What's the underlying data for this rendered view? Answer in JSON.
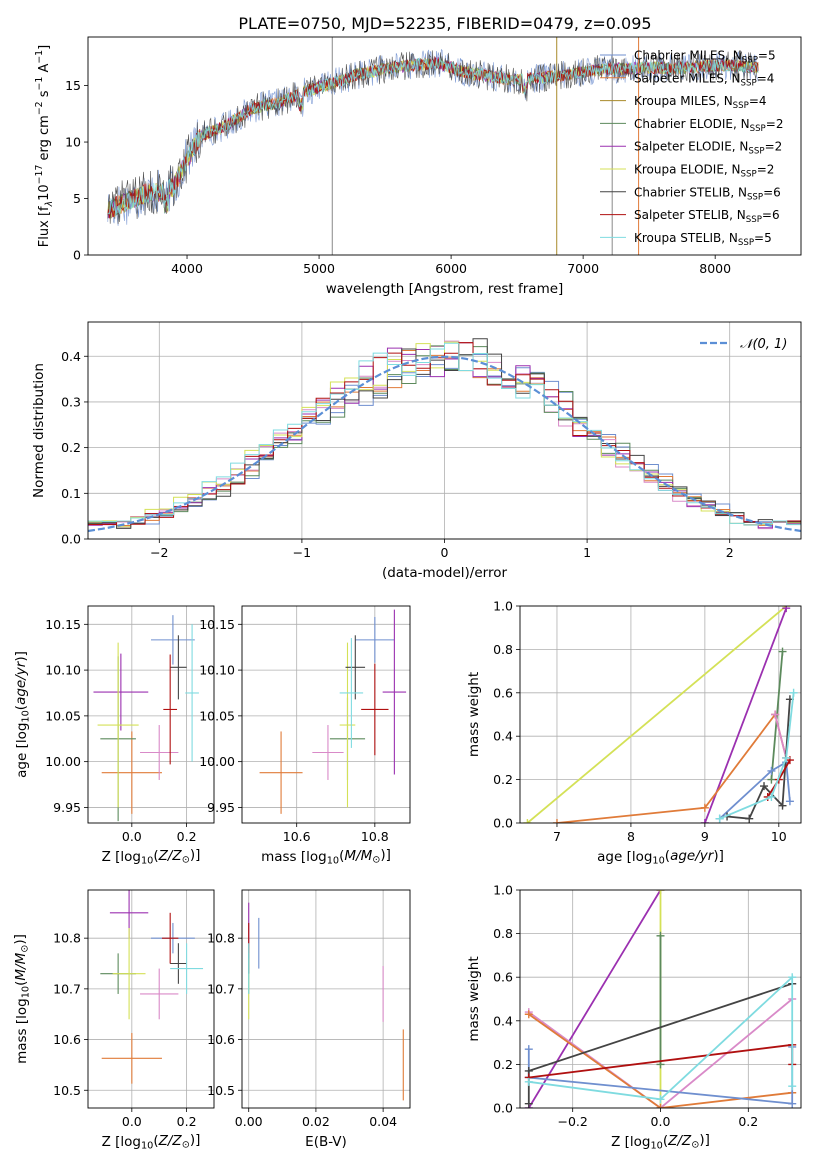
{
  "figure_title": "PLATE=0750, MJD=52235, FIBERID=0479, z=0.095",
  "chart_data": [
    {
      "id": "spectrum",
      "type": "line",
      "xlabel": "wavelength [Angstrom, rest frame]",
      "ylabel": "Flux [f$_\\lambda$10$^{-17}$ erg cm$^{-2}$ s$^{-1}$ A$^{-1}$]",
      "ylabel_parts": [
        "Flux [f",
        "λ",
        "10",
        "−17",
        " erg cm",
        "−2",
        " s",
        "−1",
        " A",
        "−1",
        "]"
      ],
      "xlim": [
        3250,
        8650
      ],
      "ylim": [
        0,
        19.3
      ],
      "xticks": [
        4000,
        5000,
        6000,
        7000,
        8000
      ],
      "yticks": [
        0,
        5,
        10,
        15
      ],
      "grid": false,
      "legend_position": "top-right",
      "continuum_anchors": {
        "x": [
          3400,
          3500,
          3600,
          3700,
          3800,
          3900,
          4000,
          4100,
          4300,
          4500,
          4700,
          4900,
          5100,
          5300,
          5500,
          5700,
          5900,
          6100,
          6300,
          6500,
          6700,
          6900,
          7100,
          7300,
          7500,
          7700,
          7900,
          8100,
          8300
        ],
        "y": [
          4.0,
          4.5,
          5.0,
          5.5,
          5.5,
          6.0,
          8.5,
          10.5,
          11.5,
          13.0,
          13.5,
          14.5,
          15.2,
          16.0,
          16.5,
          16.8,
          17.0,
          16.2,
          15.8,
          15.5,
          15.7,
          16.0,
          16.4,
          16.5,
          16.6,
          16.5,
          16.7,
          16.8,
          16.6
        ]
      },
      "series": [
        {
          "name": "Chabrier MILES, N$_{SSP}$=5",
          "label": "Chabrier MILES",
          "nssp": "5",
          "color": "#6f8fcf"
        },
        {
          "name": "Salpeter MILES, N$_{SSP}$=4",
          "label": "Salpeter MILES",
          "nssp": "4",
          "color": "#e07b39"
        },
        {
          "name": "Kroupa MILES, N$_{SSP}$=4",
          "label": "Kroupa MILES",
          "nssp": "4",
          "color": "#a88a2a"
        },
        {
          "name": "Chabrier ELODIE, N$_{SSP}$=2",
          "label": "Chabrier ELODIE",
          "nssp": "2",
          "color": "#5c8a5c"
        },
        {
          "name": "Salpeter ELODIE, N$_{SSP}$=2",
          "label": "Salpeter ELODIE",
          "nssp": "2",
          "color": "#9b30b0"
        },
        {
          "name": "Kroupa ELODIE, N$_{SSP}$=2",
          "label": "Kroupa ELODIE",
          "nssp": "2",
          "color": "#d4e157"
        },
        {
          "name": "Chabrier STELIB, N$_{SSP}$=6",
          "label": "Chabrier STELIB",
          "nssp": "6",
          "color": "#444444"
        },
        {
          "name": "Salpeter STELIB, N$_{SSP}$=6",
          "label": "Salpeter STELIB",
          "nssp": "6",
          "color": "#b01010"
        },
        {
          "name": "Kroupa STELIB, N$_{SSP}$=5",
          "label": "Kroupa STELIB",
          "nssp": "5",
          "color": "#7fdbe0"
        }
      ],
      "spikes": [
        {
          "x": 5100,
          "y": 19.3,
          "color": "#888888"
        },
        {
          "x": 6800,
          "y": 19.3,
          "color": "#a88a2a"
        },
        {
          "x": 7220,
          "y": 19.3,
          "color": "#888888"
        },
        {
          "x": 7420,
          "y": 19.3,
          "color": "#e07b39"
        }
      ]
    },
    {
      "id": "residuals",
      "type": "line",
      "xlabel": "(data-model)/error",
      "ylabel": "Normed distribution",
      "xlim": [
        -2.5,
        2.5
      ],
      "ylim": [
        0,
        0.475
      ],
      "xticks": [
        -2,
        -1,
        0,
        1,
        2
      ],
      "yticks": [
        0.0,
        0.1,
        0.2,
        0.3,
        0.4
      ],
      "grid": true,
      "legend_position": "top-right",
      "legend": [
        {
          "name": "$\\mathcal{N}(0,1)$",
          "display": "𝒩(0, 1)",
          "color": "#5b8fd6",
          "dashed": true
        }
      ],
      "hist_colors": [
        "#6f8fcf",
        "#e07b39",
        "#d98ac8",
        "#5c8a5c",
        "#9b30b0",
        "#d4e157",
        "#444444",
        "#b01010",
        "#7fdbe0"
      ],
      "gaussian": {
        "mean": 0,
        "sigma": 1
      }
    },
    {
      "id": "age-vs-Z",
      "type": "scatter",
      "xlabel": "Z [log$_{10}$(Z/Z$_\\odot$)]",
      "ylabel": "age  [log$_{10}$(age/yr)]",
      "xlim": [
        -0.16,
        0.3
      ],
      "ylim": [
        9.933,
        10.17
      ],
      "xticks": [
        0.0,
        0.2
      ],
      "yticks": [
        9.95,
        10.0,
        10.05,
        10.1,
        10.15
      ],
      "grid": true,
      "points": [
        {
          "x": 0.15,
          "y": 10.133,
          "xerr": 0.08,
          "yerr": 0.027,
          "color": "#6f8fcf"
        },
        {
          "x": 0.0,
          "y": 9.988,
          "xerr": 0.11,
          "yerr": 0.045,
          "color": "#e07b39"
        },
        {
          "x": 0.1,
          "y": 10.01,
          "xerr": 0.07,
          "yerr": 0.03,
          "color": "#d98ac8"
        },
        {
          "x": -0.05,
          "y": 10.025,
          "xerr": 0.065,
          "yerr": 0.09,
          "color": "#5c8a5c"
        },
        {
          "x": -0.04,
          "y": 10.076,
          "xerr": 0.1,
          "yerr": 0.042,
          "color": "#9b30b0"
        },
        {
          "x": -0.05,
          "y": 10.04,
          "xerr": 0.075,
          "yerr": 0.09,
          "color": "#d4e157"
        },
        {
          "x": 0.17,
          "y": 10.103,
          "xerr": 0.03,
          "yerr": 0.035,
          "color": "#444444"
        },
        {
          "x": 0.14,
          "y": 10.057,
          "xerr": 0.025,
          "yerr": 0.06,
          "color": "#b01010"
        },
        {
          "x": 0.22,
          "y": 10.075,
          "xerr": 0.025,
          "yerr": 0.075,
          "color": "#7fdbe0"
        }
      ]
    },
    {
      "id": "age-vs-mass",
      "type": "scatter",
      "xlabel": "mass [log$_{10}$(M/M$_\\odot$)]",
      "ylabel": "",
      "xlim": [
        10.46,
        10.89
      ],
      "ylim": [
        9.933,
        10.17
      ],
      "xticks": [
        10.6,
        10.8
      ],
      "yticks": [
        9.95,
        10.0,
        10.05,
        10.1,
        10.15
      ],
      "grid": true,
      "points": [
        {
          "x": 10.8,
          "y": 10.133,
          "xerr": 0.05,
          "yerr": 0.025,
          "color": "#6f8fcf"
        },
        {
          "x": 10.56,
          "y": 9.988,
          "xerr": 0.055,
          "yerr": 0.045,
          "color": "#e07b39"
        },
        {
          "x": 10.68,
          "y": 10.01,
          "xerr": 0.04,
          "yerr": 0.03,
          "color": "#d98ac8"
        },
        {
          "x": 10.73,
          "y": 10.025,
          "xerr": 0.045,
          "yerr": 0.045,
          "color": "#5c8a5c"
        },
        {
          "x": 10.85,
          "y": 10.076,
          "xerr": 0.03,
          "yerr": 0.09,
          "color": "#9b30b0"
        },
        {
          "x": 10.73,
          "y": 10.04,
          "xerr": 0.02,
          "yerr": 0.09,
          "color": "#d4e157"
        },
        {
          "x": 10.75,
          "y": 10.103,
          "xerr": 0.025,
          "yerr": 0.035,
          "color": "#444444"
        },
        {
          "x": 10.8,
          "y": 10.057,
          "xerr": 0.035,
          "yerr": 0.05,
          "color": "#b01010"
        },
        {
          "x": 10.74,
          "y": 10.075,
          "xerr": 0.03,
          "yerr": 0.06,
          "color": "#7fdbe0"
        }
      ]
    },
    {
      "id": "weight-vs-age",
      "type": "line",
      "xlabel": "age  [log$_{10}$(age/yr)]",
      "ylabel": "mass weight",
      "xlim": [
        6.5,
        10.3
      ],
      "ylim": [
        0,
        1.0
      ],
      "xticks": [
        7,
        8,
        9,
        10
      ],
      "yticks": [
        0.0,
        0.2,
        0.4,
        0.6,
        0.8,
        1.0
      ],
      "grid": true,
      "series": [
        {
          "color": "#d4e157",
          "x": [
            6.6,
            10.1
          ],
          "y": [
            0.0,
            1.0
          ]
        },
        {
          "color": "#9b30b0",
          "x": [
            9.0,
            10.1
          ],
          "y": [
            0.0,
            0.99
          ]
        },
        {
          "color": "#5c8a5c",
          "x": [
            9.9,
            10.05
          ],
          "y": [
            0.2,
            0.79
          ]
        },
        {
          "color": "#e07b39",
          "x": [
            7.0,
            9.0,
            9.95,
            10.1
          ],
          "y": [
            0.0,
            0.07,
            0.5,
            0.3
          ]
        },
        {
          "color": "#d98ac8",
          "x": [
            9.95,
            10.1
          ],
          "y": [
            0.5,
            0.3
          ]
        },
        {
          "color": "#6f8fcf",
          "x": [
            9.2,
            9.9,
            10.1,
            10.15
          ],
          "y": [
            0.02,
            0.24,
            0.28,
            0.1
          ]
        },
        {
          "color": "#444444",
          "x": [
            9.3,
            9.6,
            9.8,
            10.05,
            10.15
          ],
          "y": [
            0.03,
            0.02,
            0.17,
            0.08,
            0.57
          ]
        },
        {
          "color": "#b01010",
          "x": [
            9.85,
            10.0,
            10.15
          ],
          "y": [
            0.12,
            0.2,
            0.29
          ]
        },
        {
          "color": "#7fdbe0",
          "x": [
            9.2,
            9.9,
            10.1,
            10.2
          ],
          "y": [
            0.02,
            0.12,
            0.3,
            0.6
          ]
        }
      ]
    },
    {
      "id": "mass-vs-Z",
      "type": "scatter",
      "xlabel": "Z [log$_{10}$(Z/Z$_\\odot$)]",
      "ylabel": "mass [log$_{10}$(M/M$_\\odot$)]",
      "xlim": [
        -0.16,
        0.3
      ],
      "ylim": [
        10.465,
        10.895
      ],
      "xticks": [
        0.0,
        0.2
      ],
      "yticks": [
        10.5,
        10.6,
        10.7,
        10.8
      ],
      "grid": true,
      "points": [
        {
          "x": 0.15,
          "y": 10.8,
          "xerr": 0.08,
          "yerr": 0.03,
          "color": "#6f8fcf"
        },
        {
          "x": 0.0,
          "y": 10.563,
          "xerr": 0.11,
          "yerr": 0.05,
          "color": "#e07b39"
        },
        {
          "x": 0.1,
          "y": 10.69,
          "xerr": 0.07,
          "yerr": 0.05,
          "color": "#d98ac8"
        },
        {
          "x": -0.05,
          "y": 10.73,
          "xerr": 0.065,
          "yerr": 0.04,
          "color": "#5c8a5c"
        },
        {
          "x": -0.01,
          "y": 10.85,
          "xerr": 0.07,
          "yerr": 0.05,
          "color": "#9b30b0"
        },
        {
          "x": -0.01,
          "y": 10.73,
          "xerr": 0.06,
          "yerr": 0.09,
          "color": "#d4e157"
        },
        {
          "x": 0.17,
          "y": 10.75,
          "xerr": 0.03,
          "yerr": 0.04,
          "color": "#444444"
        },
        {
          "x": 0.14,
          "y": 10.8,
          "xerr": 0.03,
          "yerr": 0.05,
          "color": "#b01010"
        },
        {
          "x": 0.2,
          "y": 10.74,
          "xerr": 0.06,
          "yerr": 0.05,
          "color": "#7fdbe0"
        }
      ]
    },
    {
      "id": "mass-vs-ebv",
      "type": "scatter",
      "xlabel": "E(B-V)",
      "ylabel": "",
      "xlim": [
        -0.002,
        0.048
      ],
      "ylim": [
        10.465,
        10.895
      ],
      "xticks": [
        0.0,
        0.02,
        0.04
      ],
      "yticks": [
        10.5,
        10.6,
        10.7,
        10.8
      ],
      "grid": true,
      "points": [
        {
          "x": 0.003,
          "y": 10.79,
          "xerr": 0,
          "yerr": 0.05,
          "color": "#6f8fcf"
        },
        {
          "x": 0.046,
          "y": 10.55,
          "xerr": 0,
          "yerr": 0.07,
          "color": "#e07b39"
        },
        {
          "x": 0.04,
          "y": 10.69,
          "xerr": 0,
          "yerr": 0.055,
          "color": "#d98ac8"
        },
        {
          "x": 0.0,
          "y": 10.73,
          "xerr": 0,
          "yerr": 0.04,
          "color": "#5c8a5c"
        },
        {
          "x": 0.0,
          "y": 10.83,
          "xerr": 0,
          "yerr": 0.04,
          "color": "#9b30b0"
        },
        {
          "x": 0.0,
          "y": 10.7,
          "xerr": 0,
          "yerr": 0.06,
          "color": "#d4e157"
        },
        {
          "x": 0.0,
          "y": 10.76,
          "xerr": 0,
          "yerr": 0.03,
          "color": "#444444"
        },
        {
          "x": 0.0,
          "y": 10.8,
          "xerr": 0,
          "yerr": 0.03,
          "color": "#b01010"
        },
        {
          "x": 0.0,
          "y": 10.74,
          "xerr": 0,
          "yerr": 0.05,
          "color": "#7fdbe0"
        }
      ]
    },
    {
      "id": "weight-vs-Z",
      "type": "line",
      "xlabel": "Z [log$_{10}$(Z/Z$_\\odot$)]",
      "ylabel": "mass weight",
      "xlim": [
        -0.32,
        0.32
      ],
      "ylim": [
        0,
        1.0
      ],
      "xticks": [
        -0.2,
        0.0,
        0.2
      ],
      "yticks": [
        0.0,
        0.2,
        0.4,
        0.6,
        0.8,
        1.0
      ],
      "grid": true,
      "series": [
        {
          "color": "#9b30b0",
          "x": [
            -0.3,
            0.0
          ],
          "y": [
            0.0,
            1.0
          ]
        },
        {
          "color": "#d4e157",
          "x": [
            0.0,
            0.0
          ],
          "y": [
            0.0,
            1.0
          ]
        },
        {
          "color": "#5c8a5c",
          "x": [
            0.0,
            0.0
          ],
          "y": [
            0.2,
            0.79
          ]
        },
        {
          "color": "#d98ac8",
          "x": [
            -0.3,
            0.0,
            0.3
          ],
          "y": [
            0.44,
            0.0,
            0.5
          ]
        },
        {
          "color": "#e07b39",
          "x": [
            -0.3,
            0.0,
            0.3
          ],
          "y": [
            0.43,
            0.0,
            0.07
          ]
        },
        {
          "color": "#6f8fcf",
          "x": [
            -0.3,
            -0.3,
            0.3,
            0.3
          ],
          "y": [
            0.27,
            0.14,
            0.02,
            0.28
          ]
        },
        {
          "color": "#444444",
          "x": [
            -0.3,
            -0.3,
            0.3
          ],
          "y": [
            0.02,
            0.17,
            0.57
          ]
        },
        {
          "color": "#b01010",
          "x": [
            -0.3,
            0.3,
            0.3
          ],
          "y": [
            0.14,
            0.29,
            0.2
          ]
        },
        {
          "color": "#7fdbe0",
          "x": [
            -0.3,
            0.0,
            0.3,
            0.3
          ],
          "y": [
            0.12,
            0.04,
            0.6,
            0.1
          ]
        }
      ]
    }
  ]
}
